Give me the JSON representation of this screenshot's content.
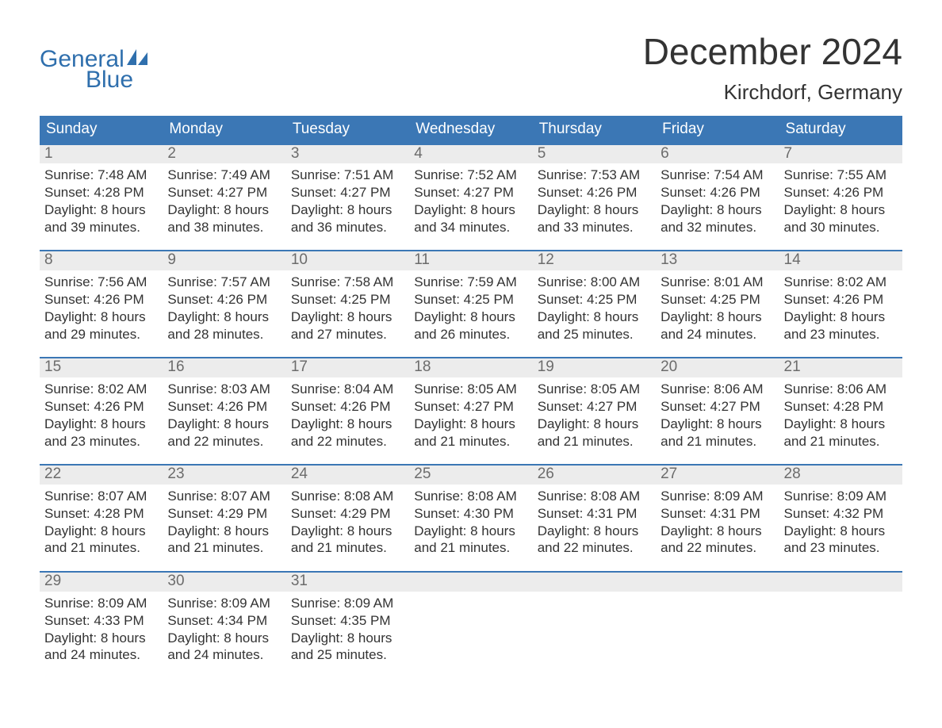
{
  "brand": {
    "word1": "General",
    "word2": "Blue"
  },
  "title": "December 2024",
  "location": "Kirchdorf, Germany",
  "colors": {
    "accent": "#3b77b5",
    "logo": "#2f6fad",
    "dayNumBg": "#ececec",
    "dayNumText": "#6c6c6c",
    "bodyText": "#333333",
    "white": "#ffffff"
  },
  "daysOfWeek": [
    "Sunday",
    "Monday",
    "Tuesday",
    "Wednesday",
    "Thursday",
    "Friday",
    "Saturday"
  ],
  "labels": {
    "sunrise": "Sunrise:",
    "sunset": "Sunset:",
    "daylightPrefix": "Daylight:"
  },
  "weeks": [
    [
      {
        "n": "1",
        "sr": "7:48 AM",
        "ss": "4:28 PM",
        "dl1": "Daylight: 8 hours",
        "dl2": "and 39 minutes."
      },
      {
        "n": "2",
        "sr": "7:49 AM",
        "ss": "4:27 PM",
        "dl1": "Daylight: 8 hours",
        "dl2": "and 38 minutes."
      },
      {
        "n": "3",
        "sr": "7:51 AM",
        "ss": "4:27 PM",
        "dl1": "Daylight: 8 hours",
        "dl2": "and 36 minutes."
      },
      {
        "n": "4",
        "sr": "7:52 AM",
        "ss": "4:27 PM",
        "dl1": "Daylight: 8 hours",
        "dl2": "and 34 minutes."
      },
      {
        "n": "5",
        "sr": "7:53 AM",
        "ss": "4:26 PM",
        "dl1": "Daylight: 8 hours",
        "dl2": "and 33 minutes."
      },
      {
        "n": "6",
        "sr": "7:54 AM",
        "ss": "4:26 PM",
        "dl1": "Daylight: 8 hours",
        "dl2": "and 32 minutes."
      },
      {
        "n": "7",
        "sr": "7:55 AM",
        "ss": "4:26 PM",
        "dl1": "Daylight: 8 hours",
        "dl2": "and 30 minutes."
      }
    ],
    [
      {
        "n": "8",
        "sr": "7:56 AM",
        "ss": "4:26 PM",
        "dl1": "Daylight: 8 hours",
        "dl2": "and 29 minutes."
      },
      {
        "n": "9",
        "sr": "7:57 AM",
        "ss": "4:26 PM",
        "dl1": "Daylight: 8 hours",
        "dl2": "and 28 minutes."
      },
      {
        "n": "10",
        "sr": "7:58 AM",
        "ss": "4:25 PM",
        "dl1": "Daylight: 8 hours",
        "dl2": "and 27 minutes."
      },
      {
        "n": "11",
        "sr": "7:59 AM",
        "ss": "4:25 PM",
        "dl1": "Daylight: 8 hours",
        "dl2": "and 26 minutes."
      },
      {
        "n": "12",
        "sr": "8:00 AM",
        "ss": "4:25 PM",
        "dl1": "Daylight: 8 hours",
        "dl2": "and 25 minutes."
      },
      {
        "n": "13",
        "sr": "8:01 AM",
        "ss": "4:25 PM",
        "dl1": "Daylight: 8 hours",
        "dl2": "and 24 minutes."
      },
      {
        "n": "14",
        "sr": "8:02 AM",
        "ss": "4:26 PM",
        "dl1": "Daylight: 8 hours",
        "dl2": "and 23 minutes."
      }
    ],
    [
      {
        "n": "15",
        "sr": "8:02 AM",
        "ss": "4:26 PM",
        "dl1": "Daylight: 8 hours",
        "dl2": "and 23 minutes."
      },
      {
        "n": "16",
        "sr": "8:03 AM",
        "ss": "4:26 PM",
        "dl1": "Daylight: 8 hours",
        "dl2": "and 22 minutes."
      },
      {
        "n": "17",
        "sr": "8:04 AM",
        "ss": "4:26 PM",
        "dl1": "Daylight: 8 hours",
        "dl2": "and 22 minutes."
      },
      {
        "n": "18",
        "sr": "8:05 AM",
        "ss": "4:27 PM",
        "dl1": "Daylight: 8 hours",
        "dl2": "and 21 minutes."
      },
      {
        "n": "19",
        "sr": "8:05 AM",
        "ss": "4:27 PM",
        "dl1": "Daylight: 8 hours",
        "dl2": "and 21 minutes."
      },
      {
        "n": "20",
        "sr": "8:06 AM",
        "ss": "4:27 PM",
        "dl1": "Daylight: 8 hours",
        "dl2": "and 21 minutes."
      },
      {
        "n": "21",
        "sr": "8:06 AM",
        "ss": "4:28 PM",
        "dl1": "Daylight: 8 hours",
        "dl2": "and 21 minutes."
      }
    ],
    [
      {
        "n": "22",
        "sr": "8:07 AM",
        "ss": "4:28 PM",
        "dl1": "Daylight: 8 hours",
        "dl2": "and 21 minutes."
      },
      {
        "n": "23",
        "sr": "8:07 AM",
        "ss": "4:29 PM",
        "dl1": "Daylight: 8 hours",
        "dl2": "and 21 minutes."
      },
      {
        "n": "24",
        "sr": "8:08 AM",
        "ss": "4:29 PM",
        "dl1": "Daylight: 8 hours",
        "dl2": "and 21 minutes."
      },
      {
        "n": "25",
        "sr": "8:08 AM",
        "ss": "4:30 PM",
        "dl1": "Daylight: 8 hours",
        "dl2": "and 21 minutes."
      },
      {
        "n": "26",
        "sr": "8:08 AM",
        "ss": "4:31 PM",
        "dl1": "Daylight: 8 hours",
        "dl2": "and 22 minutes."
      },
      {
        "n": "27",
        "sr": "8:09 AM",
        "ss": "4:31 PM",
        "dl1": "Daylight: 8 hours",
        "dl2": "and 22 minutes."
      },
      {
        "n": "28",
        "sr": "8:09 AM",
        "ss": "4:32 PM",
        "dl1": "Daylight: 8 hours",
        "dl2": "and 23 minutes."
      }
    ],
    [
      {
        "n": "29",
        "sr": "8:09 AM",
        "ss": "4:33 PM",
        "dl1": "Daylight: 8 hours",
        "dl2": "and 24 minutes."
      },
      {
        "n": "30",
        "sr": "8:09 AM",
        "ss": "4:34 PM",
        "dl1": "Daylight: 8 hours",
        "dl2": "and 24 minutes."
      },
      {
        "n": "31",
        "sr": "8:09 AM",
        "ss": "4:35 PM",
        "dl1": "Daylight: 8 hours",
        "dl2": "and 25 minutes."
      },
      {
        "empty": true
      },
      {
        "empty": true
      },
      {
        "empty": true
      },
      {
        "empty": true
      }
    ]
  ]
}
